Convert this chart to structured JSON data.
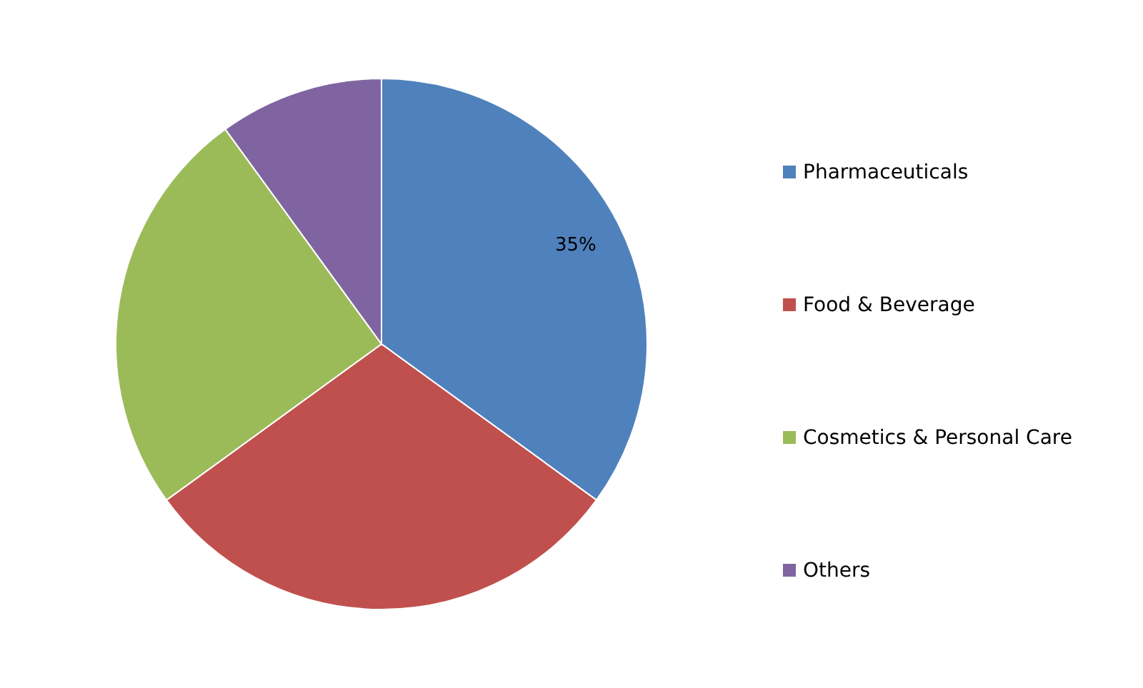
{
  "chart_data": {
    "type": "pie",
    "categories": [
      "Pharmaceuticals",
      "Food & Beverage",
      "Cosmetics & Personal Care",
      "Others"
    ],
    "values": [
      35,
      30,
      25,
      10
    ],
    "colors": [
      "#4f81bd",
      "#c0504d",
      "#9bbb59",
      "#8064a2"
    ],
    "value_labels": [
      "35%",
      null,
      null,
      null
    ],
    "legend": "right"
  }
}
